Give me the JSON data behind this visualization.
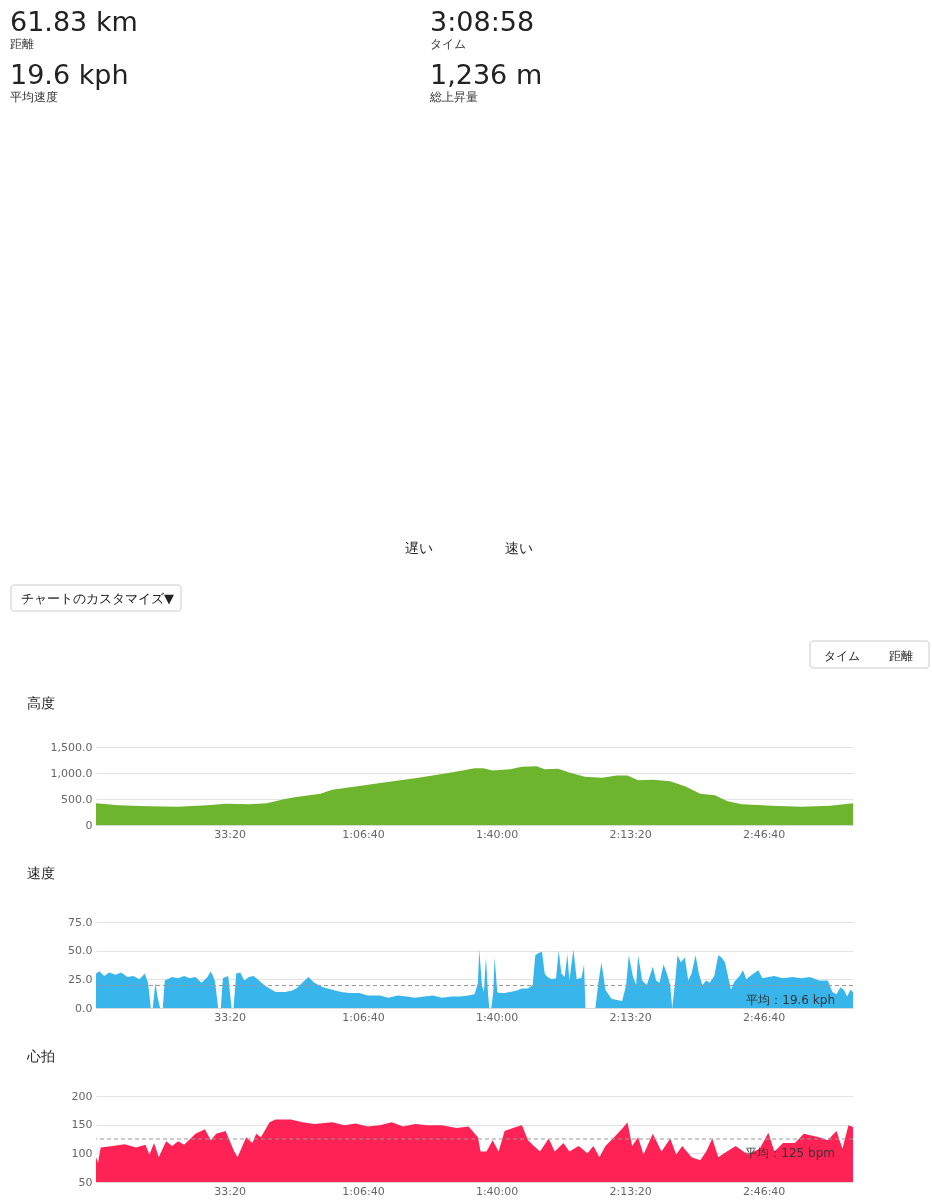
{
  "chart_data": [
    {
      "type": "other",
      "annotations": [
        "61.83 km",
        "距離",
        "3:08:58",
        "タイム",
        "19.6 kph",
        "平均速度",
        "1,236 m",
        "総上昇量",
        "遅い",
        "速い",
        "チャートのカスタマイズ▼",
        "タイム",
        "距離"
      ]
    },
    {
      "type": "area",
      "title": "高度",
      "x": [
        0,
        340,
        780,
        1230,
        1670,
        1940,
        2290,
        2560,
        2830,
        3000,
        3360,
        3540,
        3890,
        4340,
        4780,
        5230,
        5490,
        5670,
        5800,
        5940,
        6200,
        6380,
        6600,
        6720,
        6920,
        7090,
        7320,
        7580,
        7800,
        7960,
        8120,
        8340,
        8600,
        8830,
        9050,
        9270,
        9450,
        9670,
        10120,
        10560,
        11000,
        11338
      ],
      "series": [
        {
          "color": "#6cb52d",
          "values": [
            420,
            380,
            360,
            350,
            380,
            410,
            400,
            420,
            500,
            540,
            600,
            680,
            740,
            820,
            900,
            990,
            1050,
            1090,
            1090,
            1050,
            1070,
            1120,
            1130,
            1070,
            1080,
            1010,
            930,
            910,
            950,
            950,
            860,
            870,
            840,
            740,
            600,
            570,
            460,
            400,
            370,
            350,
            370,
            420
          ]
        }
      ],
      "xlim": [
        0,
        11338
      ],
      "xticks": [
        {
          "value": 2000,
          "label": "33:20"
        },
        {
          "value": 4000,
          "label": "1:06:40"
        },
        {
          "value": 6000,
          "label": "1:40:00"
        },
        {
          "value": 8000,
          "label": "2:13:20"
        },
        {
          "value": 10000,
          "label": "2:46:40"
        }
      ],
      "ylim": [
        0,
        1500
      ],
      "yticks": [
        0,
        {
          "value": 500,
          "label": "500.0"
        },
        {
          "value": 1000,
          "label": "1,000.0"
        },
        {
          "value": 1500,
          "label": "1,500.0"
        }
      ],
      "grid": "y"
    },
    {
      "type": "area",
      "title": "速度",
      "x": [
        0,
        50,
        120,
        200,
        290,
        380,
        470,
        560,
        650,
        730,
        780,
        820,
        850,
        890,
        920,
        960,
        1000,
        1030,
        1140,
        1230,
        1320,
        1400,
        1490,
        1580,
        1670,
        1720,
        1780,
        1830,
        1870,
        1900,
        1980,
        2030,
        2060,
        2100,
        2160,
        2220,
        2290,
        2360,
        2440,
        2520,
        2600,
        2690,
        2830,
        2930,
        3000,
        3090,
        3180,
        3270,
        3400,
        3540,
        3670,
        3800,
        3940,
        4070,
        4250,
        4380,
        4520,
        4650,
        4780,
        4920,
        5050,
        5180,
        5320,
        5450,
        5580,
        5670,
        5720,
        5740,
        5780,
        5810,
        5840,
        5870,
        5890,
        5920,
        5950,
        5970,
        6010,
        6040,
        6120,
        6200,
        6290,
        6380,
        6470,
        6540,
        6580,
        6630,
        6680,
        6720,
        6760,
        6830,
        6890,
        6930,
        6970,
        7020,
        7060,
        7090,
        7150,
        7200,
        7240,
        7270,
        7310,
        7330,
        7480,
        7520,
        7570,
        7630,
        7720,
        7800,
        7880,
        7940,
        7980,
        8040,
        8090,
        8120,
        8180,
        8250,
        8340,
        8390,
        8440,
        8500,
        8550,
        8600,
        8630,
        8670,
        8710,
        8760,
        8820,
        8870,
        8920,
        8980,
        9030,
        9080,
        9140,
        9190,
        9260,
        9320,
        9370,
        9420,
        9480,
        9510,
        9560,
        9640,
        9690,
        9740,
        9800,
        9850,
        9920,
        9980,
        10070,
        10160,
        10290,
        10430,
        10560,
        10690,
        10830,
        10960,
        11030,
        11090,
        11150,
        11200,
        11250,
        11300,
        11338
      ],
      "series": [
        {
          "color": "#38b6ec",
          "values": [
            30,
            32,
            28,
            31,
            29,
            31,
            27,
            28,
            25,
            30,
            22,
            0,
            0,
            22,
            10,
            0,
            0,
            24,
            27,
            26,
            28,
            26,
            27,
            22,
            27,
            32,
            24,
            0,
            0,
            26,
            28,
            0,
            0,
            30,
            31,
            24,
            27,
            28,
            24,
            20,
            17,
            14,
            14,
            15,
            17,
            22,
            27,
            22,
            18,
            16,
            14,
            13,
            13,
            11,
            11,
            9,
            11,
            10,
            9,
            10,
            11,
            9,
            10,
            10,
            11,
            12,
            22,
            51,
            20,
            14,
            44,
            14,
            0,
            0,
            14,
            44,
            14,
            13,
            13,
            14,
            15,
            17,
            17,
            20,
            46,
            48,
            49,
            30,
            27,
            25,
            26,
            50,
            30,
            27,
            47,
            24,
            51,
            25,
            26,
            26,
            38,
            0,
            0,
            20,
            40,
            16,
            8,
            7,
            6,
            20,
            46,
            28,
            20,
            46,
            24,
            20,
            36,
            24,
            22,
            38,
            30,
            20,
            0,
            20,
            46,
            40,
            44,
            24,
            30,
            46,
            30,
            20,
            24,
            22,
            28,
            46,
            44,
            40,
            24,
            16,
            23,
            28,
            33,
            25,
            28,
            30,
            33,
            26,
            27,
            28,
            26,
            27,
            26,
            27,
            24,
            24,
            14,
            12,
            18,
            16,
            10,
            16,
            14
          ]
        }
      ],
      "xlim": [
        0,
        11338
      ],
      "xticks": [
        {
          "value": 2000,
          "label": "33:20"
        },
        {
          "value": 4000,
          "label": "1:06:40"
        },
        {
          "value": 6000,
          "label": "1:40:00"
        },
        {
          "value": 8000,
          "label": "2:13:20"
        },
        {
          "value": 10000,
          "label": "2:46:40"
        }
      ],
      "ylim": [
        0,
        75
      ],
      "yticks": [
        {
          "value": 0,
          "label": "0.0"
        },
        {
          "value": 25,
          "label": "25.0"
        },
        {
          "value": 50,
          "label": "50.0"
        },
        {
          "value": 75,
          "label": "75.0"
        }
      ],
      "grid": "y",
      "ref_lines": [
        {
          "axis": "y",
          "value": 19.6,
          "label": "平均：19.6 kph",
          "color": "#999999",
          "line_style": "dashed"
        }
      ]
    },
    {
      "type": "area",
      "title": "心拍",
      "x": [
        0,
        30,
        70,
        250,
        430,
        600,
        740,
        800,
        870,
        940,
        1050,
        1140,
        1230,
        1320,
        1490,
        1630,
        1720,
        1800,
        1940,
        2070,
        2120,
        2250,
        2340,
        2400,
        2470,
        2600,
        2690,
        2920,
        3090,
        3270,
        3540,
        3720,
        3890,
        4070,
        4250,
        4430,
        4600,
        4780,
        4960,
        5180,
        5400,
        5580,
        5720,
        5760,
        5850,
        5940,
        6030,
        6120,
        6290,
        6380,
        6470,
        6560,
        6650,
        6780,
        6870,
        7000,
        7090,
        7230,
        7360,
        7450,
        7540,
        7630,
        7760,
        7890,
        7960,
        8030,
        8120,
        8200,
        8340,
        8470,
        8600,
        8690,
        8780,
        8920,
        9050,
        9140,
        9230,
        9320,
        9450,
        9580,
        9760,
        9940,
        10070,
        10160,
        10290,
        10470,
        10600,
        10830,
        10960,
        11090,
        11180,
        11270,
        11338
      ],
      "series": [
        {
          "color": "#fe2354",
          "values": [
            93,
            83,
            110,
            113,
            116,
            110,
            115,
            98,
            118,
            93,
            121,
            113,
            121,
            115,
            134,
            142,
            123,
            134,
            139,
            103,
            93,
            128,
            118,
            134,
            128,
            154,
            159,
            159,
            154,
            151,
            154,
            149,
            152,
            147,
            149,
            154,
            147,
            151,
            149,
            149,
            144,
            147,
            128,
            103,
            103,
            123,
            103,
            139,
            146,
            149,
            123,
            113,
            103,
            126,
            103,
            118,
            103,
            113,
            100,
            113,
            93,
            113,
            128,
            144,
            154,
            113,
            128,
            98,
            134,
            103,
            126,
            98,
            113,
            93,
            88,
            103,
            126,
            93,
            103,
            113,
            98,
            108,
            136,
            103,
            118,
            118,
            134,
            128,
            123,
            139,
            108,
            149,
            146
          ]
        }
      ],
      "xlim": [
        0,
        11338
      ],
      "xticks": [
        {
          "value": 2000,
          "label": "33:20"
        },
        {
          "value": 4000,
          "label": "1:06:40"
        },
        {
          "value": 6000,
          "label": "1:40:00"
        },
        {
          "value": 8000,
          "label": "2:13:20"
        },
        {
          "value": 10000,
          "label": "2:46:40"
        }
      ],
      "ylim": [
        50,
        200
      ],
      "yticks": [
        50,
        100,
        150,
        200
      ],
      "grid": "y",
      "ref_lines": [
        {
          "axis": "y",
          "value": 125,
          "label": "平均：125 bpm",
          "color": "#999999",
          "line_style": "dashed"
        }
      ]
    }
  ]
}
